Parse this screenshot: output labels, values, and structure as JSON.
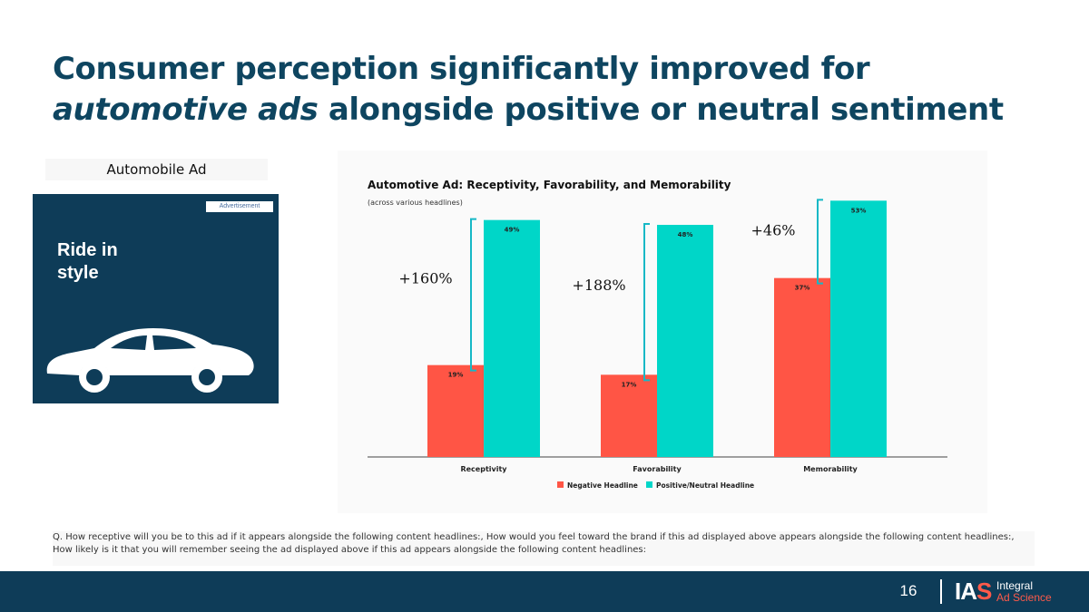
{
  "slide": {
    "title_line1": "Consumer perception significantly improved for",
    "title_emph": "automotive ads",
    "title_line2_rest": " alongside positive or neutral sentiment",
    "page_number": "16"
  },
  "ad": {
    "label": "Automobile Ad",
    "tag": "Advertisement",
    "headline": "Ride in\nstyle"
  },
  "chart_data": {
    "type": "bar",
    "title": "Automotive Ad: Receptivity, Favorability, and Memorability",
    "subtitle": "(across various headlines)",
    "categories": [
      "Receptivity",
      "Favorability",
      "Memorability"
    ],
    "series": [
      {
        "name": "Negative Headline",
        "color": "#ff5545",
        "values": [
          19,
          17,
          37
        ],
        "labels": [
          "19%",
          "17%",
          "37%"
        ]
      },
      {
        "name": "Positive/Neutral Headline",
        "color": "#00d6c8",
        "values": [
          49,
          48,
          53
        ],
        "labels": [
          "49%",
          "48%",
          "53%"
        ]
      }
    ],
    "annotations": [
      "+160%",
      "+188%",
      "+46%"
    ],
    "ylim": [
      0,
      60
    ],
    "xlabel": "",
    "ylabel": "",
    "legend": "bottom"
  },
  "footnote": "Q. How receptive will you be to this ad if it appears alongside the following content headlines:, How would you feel toward the brand if this ad displayed above appears alongside the following content headlines:, How likely is it that you will remember seeing the ad displayed above if this ad appears alongside the following content headlines:",
  "logo": {
    "mark_ia": "IA",
    "mark_s": "S",
    "name_line1": "Integral",
    "name_line2": "Ad Science"
  },
  "colors": {
    "navy": "#0e3c58",
    "accent_red": "#ff5545",
    "accent_teal": "#00d6c8",
    "bracket": "#16b8c6"
  }
}
